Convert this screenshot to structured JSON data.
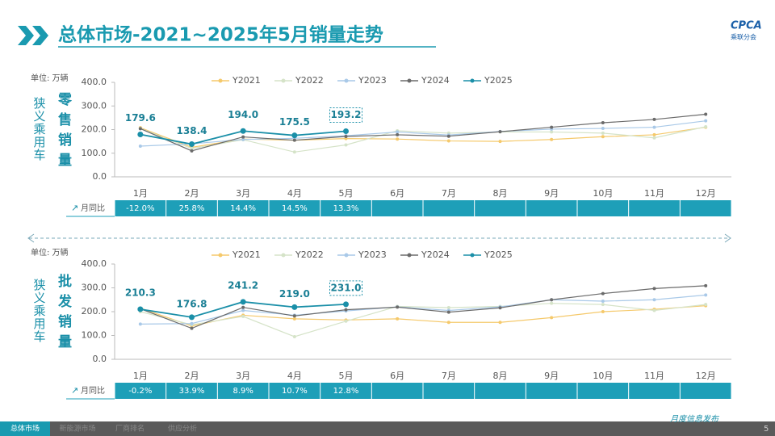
{
  "page": {
    "title": "总体市场-2021~2025年5月销量走势",
    "logo": "CPCA",
    "logo_sub": "乘联分会",
    "tabs": [
      "总体市场",
      "新能源市场",
      "厂商排名",
      "供应分析"
    ],
    "footer": "月度信息发布",
    "page_number": "5"
  },
  "chart_data": [
    {
      "type": "line",
      "unit": "单位: 万辆",
      "side_label": "狭义乘用车",
      "metric": "零售销量",
      "categories": [
        "1月",
        "2月",
        "3月",
        "4月",
        "5月",
        "6月",
        "7月",
        "8月",
        "9月",
        "10月",
        "11月",
        "12月"
      ],
      "ylim": [
        0,
        400
      ],
      "yticks": [
        {
          "value": 0,
          "label": "0.0"
        },
        {
          "value": 100,
          "label": "100.0"
        },
        {
          "value": 200,
          "label": "200.0"
        },
        {
          "value": 300,
          "label": "300.0"
        },
        {
          "value": 400,
          "label": "400.0"
        }
      ],
      "legend": "top",
      "series": [
        {
          "name": "Y2021",
          "color": "#f5c96b",
          "values": [
            208,
            125,
            160,
            155,
            162,
            160,
            152,
            150,
            158,
            170,
            178,
            210
          ]
        },
        {
          "name": "Y2022",
          "color": "#d5e3c8",
          "values": [
            205,
            120,
            157,
            105,
            135,
            195,
            185,
            190,
            190,
            185,
            165,
            212
          ]
        },
        {
          "name": "Y2023",
          "color": "#a9c9e8",
          "values": [
            130,
            140,
            158,
            163,
            174,
            190,
            177,
            192,
            202,
            205,
            210,
            237
          ]
        },
        {
          "name": "Y2024",
          "color": "#6b6b6b",
          "values": [
            204,
            110,
            169,
            155,
            171,
            178,
            172,
            191,
            210,
            229,
            243,
            265
          ]
        },
        {
          "name": "Y2025",
          "color": "#1a8fa8",
          "values": [
            179.6,
            138.4,
            194.0,
            175.5,
            193.2,
            null,
            null,
            null,
            null,
            null,
            null,
            null
          ],
          "value_labels": [
            "179.6",
            "138.4",
            "194.0",
            "175.5",
            "193.2",
            null,
            null,
            null,
            null,
            null,
            null,
            null
          ]
        }
      ],
      "row_label": "月同比",
      "row": [
        "-12.0%",
        "25.8%",
        "14.4%",
        "14.5%",
        "13.3%"
      ]
    },
    {
      "type": "line",
      "unit": "单位: 万辆",
      "side_label": "狭义乘用车",
      "metric": "批发销量",
      "categories": [
        "1月",
        "2月",
        "3月",
        "4月",
        "5月",
        "6月",
        "7月",
        "8月",
        "9月",
        "10月",
        "11月",
        "12月"
      ],
      "ylim": [
        0,
        400
      ],
      "yticks": [
        {
          "value": 0,
          "label": "0.0"
        },
        {
          "value": 100,
          "label": "100.0"
        },
        {
          "value": 200,
          "label": "200.0"
        },
        {
          "value": 300,
          "label": "300.0"
        },
        {
          "value": 400,
          "label": "400.0"
        }
      ],
      "legend": "top",
      "series": [
        {
          "name": "Y2021",
          "color": "#f5c96b",
          "values": [
            215,
            140,
            185,
            170,
            165,
            170,
            155,
            155,
            175,
            200,
            210,
            225
          ]
        },
        {
          "name": "Y2022",
          "color": "#d5e3c8",
          "values": [
            200,
            145,
            180,
            95,
            160,
            222,
            217,
            222,
            235,
            230,
            205,
            230
          ]
        },
        {
          "name": "Y2023",
          "color": "#a9c9e8",
          "values": [
            148,
            150,
            205,
            185,
            203,
            220,
            205,
            220,
            250,
            244,
            250,
            270
          ]
        },
        {
          "name": "Y2024",
          "color": "#6b6b6b",
          "values": [
            212,
            130,
            218,
            182,
            208,
            219,
            198,
            216,
            250,
            276,
            297,
            309
          ]
        },
        {
          "name": "Y2025",
          "color": "#1a8fa8",
          "values": [
            210.3,
            176.8,
            241.2,
            219.0,
            231.0,
            null,
            null,
            null,
            null,
            null,
            null,
            null
          ],
          "value_labels": [
            "210.3",
            "176.8",
            "241.2",
            "219.0",
            "231.0",
            null,
            null,
            null,
            null,
            null,
            null,
            null
          ]
        }
      ],
      "row_label": "月同比",
      "row": [
        "-0.2%",
        "33.9%",
        "8.9%",
        "10.7%",
        "12.8%"
      ]
    }
  ]
}
